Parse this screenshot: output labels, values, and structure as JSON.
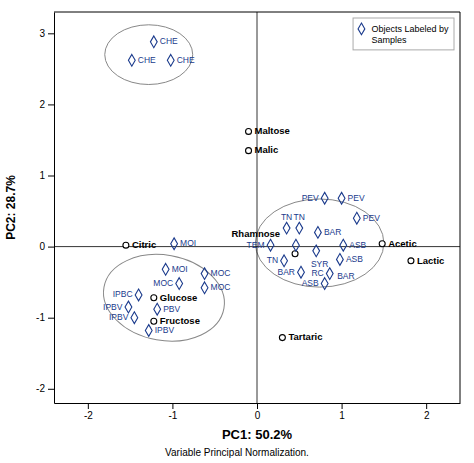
{
  "chart_data": {
    "type": "scatter",
    "x_label": "PC1: 50.2%",
    "y_label": "PC2: 28.7%",
    "subtitle": "Variable Principal Normalization.",
    "xlim": [
      -2.4,
      2.4
    ],
    "ylim": [
      -2.2,
      3.3
    ],
    "xticks": [
      -2,
      -1,
      0,
      1,
      2
    ],
    "yticks": [
      -2,
      -1,
      0,
      1,
      2,
      3
    ],
    "grid": false,
    "legend": "upper right",
    "hline": 0,
    "vline": 0,
    "series": [
      {
        "labels": [
          "Maltose",
          "Malic",
          "Citric",
          "Glucose",
          "Fructose",
          "Rhamnose",
          "Tartaric",
          "Acetic",
          "Lactic"
        ],
        "x": [
          -0.1,
          -0.1,
          -1.55,
          -1.22,
          -1.22,
          0.45,
          0.3,
          1.48,
          1.82
        ],
        "y": [
          1.62,
          1.35,
          0.02,
          -0.72,
          -1.05,
          -0.1,
          -1.28,
          0.04,
          -0.2
        ],
        "marker": "circle",
        "color": "black"
      },
      {
        "name": "Objects Labeled by\nSamples",
        "labels": [
          "CHE",
          "CHE",
          "CHE",
          "MOI",
          "MOI",
          "MOC",
          "MOC",
          "MOC",
          "IPBC",
          "IPBV",
          "IPBV",
          "IPBV",
          "PBV",
          "PEV",
          "PEV",
          "PEV",
          "TN",
          "TN",
          "TN",
          "TEM",
          "SYR",
          "BAR",
          "BAR",
          "BAR",
          "ASB",
          "ASB",
          "ASB",
          "RC"
        ],
        "x": [
          -1.22,
          -1.02,
          -1.48,
          -0.98,
          -1.08,
          -0.92,
          -0.62,
          -0.62,
          -1.4,
          -1.52,
          -1.45,
          -1.28,
          -1.18,
          0.8,
          1.0,
          1.18,
          0.35,
          0.5,
          0.32,
          0.16,
          0.46,
          0.72,
          0.7,
          0.52,
          1.02,
          0.98,
          0.8,
          0.86
        ],
        "y": [
          2.88,
          2.62,
          2.62,
          0.04,
          -0.32,
          -0.52,
          -0.38,
          -0.58,
          -0.68,
          -0.85,
          -1.0,
          -1.18,
          -0.88,
          0.68,
          0.68,
          0.4,
          0.26,
          0.26,
          -0.2,
          0.02,
          0.02,
          0.2,
          -0.06,
          -0.36,
          0.02,
          -0.18,
          -0.52,
          -0.38
        ],
        "marker": "diamond",
        "color": "#1a3a8c"
      }
    ],
    "ellipses": [
      {
        "cx": -1.28,
        "cy": 2.7,
        "rx": 0.52,
        "ry": 0.42,
        "angle": 0,
        "color": "#888888"
      },
      {
        "cx": -1.1,
        "cy": -0.72,
        "rx": 0.72,
        "ry": 0.6,
        "angle": -10,
        "color": "#888888"
      },
      {
        "cx": 0.74,
        "cy": 0.05,
        "rx": 0.76,
        "ry": 0.62,
        "angle": 0,
        "color": "#888888"
      }
    ]
  }
}
